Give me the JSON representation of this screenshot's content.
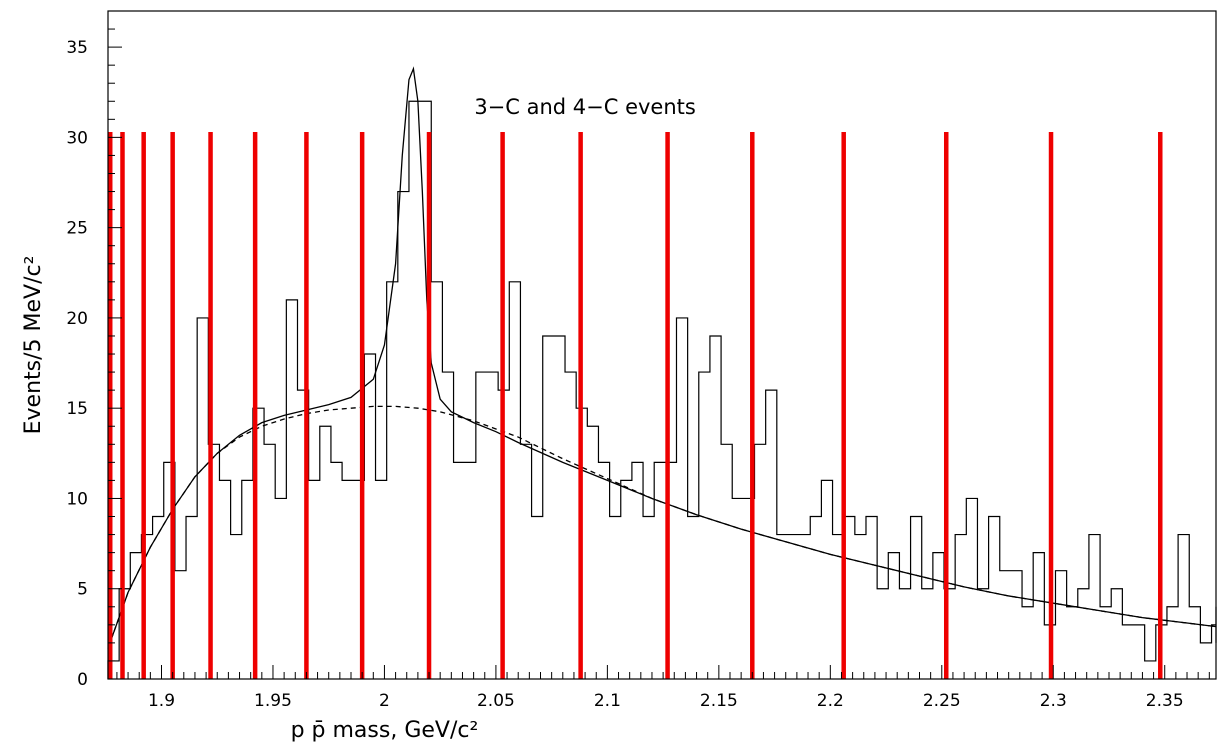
{
  "chart_data": {
    "type": "line",
    "title": "",
    "annotation": "3−C and 4−C events",
    "xlabel": "p p̄ mass, GeV/c²",
    "ylabel": "Events/5 MeV/c²",
    "xlim": [
      1.876,
      2.373
    ],
    "ylim": [
      0,
      37
    ],
    "x_ticks": [
      "1.9",
      "1.95",
      "2",
      "2.05",
      "2.1",
      "2.15",
      "2.2",
      "2.25",
      "2.3",
      "2.35"
    ],
    "x_tick_values": [
      1.9,
      1.95,
      2.0,
      2.05,
      2.1,
      2.15,
      2.2,
      2.25,
      2.3,
      2.35
    ],
    "y_ticks": [
      "0",
      "5",
      "10",
      "15",
      "20",
      "25",
      "30",
      "35"
    ],
    "y_tick_values": [
      0,
      5,
      10,
      15,
      20,
      25,
      30,
      35
    ],
    "grid": false,
    "histogram": {
      "name": "",
      "bin_width": 0.005,
      "x_start": 1.876,
      "values": [
        1,
        5,
        7,
        8,
        9,
        12,
        6,
        9,
        20,
        13,
        11,
        8,
        11,
        15,
        13,
        10,
        21,
        16,
        11,
        14,
        12,
        11,
        11,
        18,
        11,
        22,
        27,
        32,
        32,
        22,
        17,
        12,
        12,
        17,
        17,
        16,
        22,
        13,
        9,
        19,
        19,
        17,
        15,
        14,
        12,
        9,
        11,
        12,
        9,
        12,
        12,
        20,
        9,
        17,
        19,
        13,
        10,
        10,
        13,
        16,
        8,
        8,
        8,
        9,
        11,
        8,
        9,
        8,
        9,
        5,
        7,
        5,
        9,
        5,
        7,
        5,
        8,
        10,
        5,
        9,
        6,
        6,
        4,
        7,
        3,
        6,
        4,
        5,
        8,
        4,
        5,
        3,
        3,
        1,
        3,
        4,
        8,
        4,
        2,
        3,
        4,
        3,
        2
      ]
    },
    "series": [
      {
        "name": "",
        "style": "solid",
        "x": [
          1.876,
          1.885,
          1.895,
          1.905,
          1.915,
          1.925,
          1.935,
          1.945,
          1.955,
          1.965,
          1.975,
          1.985,
          1.995,
          2.0,
          2.005,
          2.008,
          2.011,
          2.013,
          2.015,
          2.017,
          2.019,
          2.021,
          2.025,
          2.03,
          2.04,
          2.05,
          2.06,
          2.08,
          2.1,
          2.12,
          2.14,
          2.16,
          2.18,
          2.2,
          2.22,
          2.24,
          2.26,
          2.28,
          2.3,
          2.32,
          2.34,
          2.36,
          2.373
        ],
        "y": [
          1.7,
          4.8,
          7.3,
          9.4,
          11.2,
          12.5,
          13.5,
          14.2,
          14.6,
          14.9,
          15.2,
          15.6,
          16.6,
          18.5,
          23.0,
          29.0,
          33.2,
          33.8,
          32.0,
          27.0,
          21.0,
          17.5,
          15.5,
          14.8,
          14.2,
          13.7,
          13.1,
          12.0,
          11.0,
          10.0,
          9.1,
          8.3,
          7.6,
          6.9,
          6.3,
          5.7,
          5.1,
          4.6,
          4.2,
          3.8,
          3.4,
          3.1,
          2.9
        ]
      },
      {
        "name": "",
        "style": "dashed",
        "x": [
          1.876,
          1.885,
          1.895,
          1.905,
          1.915,
          1.925,
          1.935,
          1.945,
          1.955,
          1.965,
          1.975,
          1.985,
          1.995,
          2.005,
          2.015,
          2.025,
          2.04,
          2.06,
          2.08,
          2.1,
          2.12,
          2.14,
          2.16,
          2.18,
          2.2,
          2.22,
          2.24,
          2.26,
          2.28,
          2.3,
          2.32,
          2.34,
          2.36,
          2.373
        ],
        "y": [
          1.7,
          4.8,
          7.3,
          9.4,
          11.2,
          12.5,
          13.4,
          14.0,
          14.4,
          14.7,
          14.9,
          15.0,
          15.1,
          15.1,
          15.0,
          14.8,
          14.3,
          13.4,
          12.2,
          11.1,
          10.0,
          9.1,
          8.3,
          7.6,
          6.9,
          6.3,
          5.7,
          5.1,
          4.6,
          4.2,
          3.8,
          3.4,
          3.1,
          2.9
        ]
      }
    ],
    "vertical_markers": {
      "color": "#ee0000",
      "y_top": 30.3,
      "x": [
        1.877,
        1.8825,
        1.892,
        1.905,
        1.922,
        1.942,
        1.965,
        1.99,
        2.02,
        2.053,
        2.088,
        2.127,
        2.165,
        2.206,
        2.252,
        2.299,
        2.348
      ]
    }
  }
}
